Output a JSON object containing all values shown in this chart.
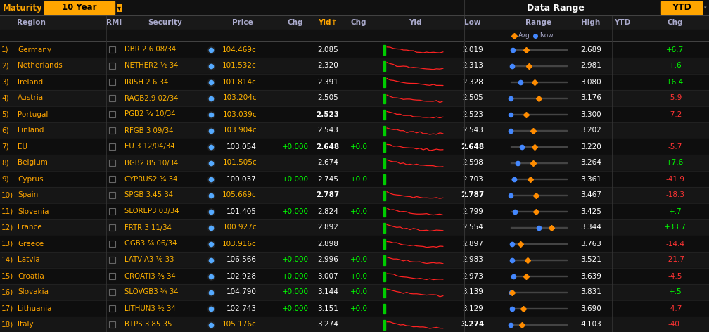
{
  "bg_color": "#0a0a0a",
  "header_bg": "#1a1a1a",
  "orange_highlight": "#FFA500",
  "green_text": "#00FF00",
  "white_text": "#FFFFFF",
  "yellow_text": "#FFB300",
  "orange_text": "#FFA500",
  "gray_text": "#AAAAAA",
  "red_text": "#FF3333",
  "col_header_color": "#AAAACC",
  "title_row": {
    "maturity_label": "Maturity",
    "maturity_value": "10 Year",
    "data_range_label": "Data Range",
    "ytd_label": "YTD"
  },
  "rows": [
    {
      "num": "1)",
      "region": "Germany",
      "security": "DBR 2.6 08/34",
      "price": "104.469c",
      "price_chg": "",
      "yld": "2.085",
      "yld_chg": "",
      "low": "2.019",
      "high": "2.689",
      "ytd": "+6.7",
      "bold_yld": false,
      "bold_low": false,
      "has_chart": true
    },
    {
      "num": "2)",
      "region": "Netherlands",
      "security": "NETHER2 ½ 34",
      "price": "101.532c",
      "price_chg": "",
      "yld": "2.320",
      "yld_chg": "",
      "low": "2.313",
      "high": "2.981",
      "ytd": "+.6",
      "bold_yld": false,
      "bold_low": false,
      "has_chart": true
    },
    {
      "num": "3)",
      "region": "Ireland",
      "security": "IRISH 2.6 34",
      "price": "101.814c",
      "price_chg": "",
      "yld": "2.391",
      "yld_chg": "",
      "low": "2.328",
      "high": "3.080",
      "ytd": "+6.4",
      "bold_yld": false,
      "bold_low": false,
      "has_chart": true
    },
    {
      "num": "4)",
      "region": "Austria",
      "security": "RAGB2.9 02/34",
      "price": "103.204c",
      "price_chg": "",
      "yld": "2.505",
      "yld_chg": "",
      "low": "2.505",
      "high": "3.176",
      "ytd": "-5.9",
      "bold_yld": false,
      "bold_low": false,
      "has_chart": true
    },
    {
      "num": "5)",
      "region": "Portugal",
      "security": "PGB2 ⅞ 10/34",
      "price": "103.039c",
      "price_chg": "",
      "yld": "2.523",
      "yld_chg": "",
      "low": "2.523",
      "high": "3.300",
      "ytd": "-7.2",
      "bold_yld": true,
      "bold_low": false,
      "has_chart": true
    },
    {
      "num": "6)",
      "region": "Finland",
      "security": "RFGB 3 09/34",
      "price": "103.904c",
      "price_chg": "",
      "yld": "2.543",
      "yld_chg": "",
      "low": "2.543",
      "high": "3.202",
      "ytd": "",
      "bold_yld": false,
      "bold_low": false,
      "has_chart": true
    },
    {
      "num": "7)",
      "region": "EU",
      "security": "EU 3 12/04/34",
      "price": "103.054",
      "price_chg": "+0.000",
      "yld": "2.648",
      "yld_chg": "+0.0",
      "low": "2.648",
      "high": "3.220",
      "ytd": "-5.7",
      "bold_yld": true,
      "bold_low": true,
      "has_chart": true
    },
    {
      "num": "8)",
      "region": "Belgium",
      "security": "BGB2.85 10/34",
      "price": "101.505c",
      "price_chg": "",
      "yld": "2.674",
      "yld_chg": "",
      "low": "2.598",
      "high": "3.264",
      "ytd": "+7.6",
      "bold_yld": false,
      "bold_low": false,
      "has_chart": true
    },
    {
      "num": "9)",
      "region": "Cyprus",
      "security": "CYPRUS2 ¾ 34",
      "price": "100.037",
      "price_chg": "+0.000",
      "yld": "2.745",
      "yld_chg": "+0.0",
      "low": "2.703",
      "high": "3.361",
      "ytd": "-41.9",
      "bold_yld": false,
      "bold_low": false,
      "has_chart": false
    },
    {
      "num": "10)",
      "region": "Spain",
      "security": "SPGB 3.45 34",
      "price": "105.669c",
      "price_chg": "",
      "yld": "2.787",
      "yld_chg": "",
      "low": "2.787",
      "high": "3.467",
      "ytd": "-18.3",
      "bold_yld": true,
      "bold_low": true,
      "has_chart": true
    },
    {
      "num": "11)",
      "region": "Slovenia",
      "security": "SLOREP3 03/34",
      "price": "101.405",
      "price_chg": "+0.000",
      "yld": "2.824",
      "yld_chg": "+0.0",
      "low": "2.799",
      "high": "3.425",
      "ytd": "+.7",
      "bold_yld": false,
      "bold_low": false,
      "has_chart": true
    },
    {
      "num": "12)",
      "region": "France",
      "security": "FRTR 3 11/34",
      "price": "100.927c",
      "price_chg": "",
      "yld": "2.892",
      "yld_chg": "",
      "low": "2.554",
      "high": "3.344",
      "ytd": "+33.7",
      "bold_yld": false,
      "bold_low": false,
      "has_chart": true
    },
    {
      "num": "13)",
      "region": "Greece",
      "security": "GGB3 ⅞ 06/34",
      "price": "103.916c",
      "price_chg": "",
      "yld": "2.898",
      "yld_chg": "",
      "low": "2.897",
      "high": "3.763",
      "ytd": "-14.4",
      "bold_yld": false,
      "bold_low": false,
      "has_chart": true
    },
    {
      "num": "14)",
      "region": "Latvia",
      "security": "LATVIA3 ⅞ 33",
      "price": "106.566",
      "price_chg": "+0.000",
      "yld": "2.996",
      "yld_chg": "+0.0",
      "low": "2.983",
      "high": "3.521",
      "ytd": "-21.7",
      "bold_yld": false,
      "bold_low": false,
      "has_chart": true
    },
    {
      "num": "15)",
      "region": "Croatia",
      "security": "CROATI3 ⅞ 34",
      "price": "102.928",
      "price_chg": "+0.000",
      "yld": "3.007",
      "yld_chg": "+0.0",
      "low": "2.973",
      "high": "3.639",
      "ytd": "-4.5",
      "bold_yld": false,
      "bold_low": false,
      "has_chart": true
    },
    {
      "num": "16)",
      "region": "Slovakia",
      "security": "SLOVGB3 ¾ 34",
      "price": "104.790",
      "price_chg": "+0.000",
      "yld": "3.144",
      "yld_chg": "+0.0",
      "low": "3.139",
      "high": "3.831",
      "ytd": "+.5",
      "bold_yld": false,
      "bold_low": false,
      "has_chart": true
    },
    {
      "num": "17)",
      "region": "Lithuania",
      "security": "LITHUN3 ½ 34",
      "price": "102.743",
      "price_chg": "+0.000",
      "yld": "3.151",
      "yld_chg": "+0.0",
      "low": "3.129",
      "high": "3.690",
      "ytd": "-4.7",
      "bold_yld": false,
      "bold_low": false,
      "has_chart": false
    },
    {
      "num": "18)",
      "region": "Italy",
      "security": "BTPS 3.85 35",
      "price": "105.176c",
      "price_chg": "",
      "yld": "3.274",
      "yld_chg": "",
      "low": "3.274",
      "high": "4.103",
      "ytd": "-40.",
      "bold_yld": false,
      "bold_low": true,
      "has_chart": true
    }
  ],
  "range_bar_data": [
    {
      "now": 0.04,
      "avg": 0.28
    },
    {
      "now": 0.02,
      "avg": 0.32
    },
    {
      "now": 0.18,
      "avg": 0.42
    },
    {
      "now": 0.0,
      "avg": 0.5
    },
    {
      "now": 0.0,
      "avg": 0.28
    },
    {
      "now": 0.0,
      "avg": 0.4
    },
    {
      "now": 0.2,
      "avg": 0.42
    },
    {
      "now": 0.12,
      "avg": 0.4
    },
    {
      "now": 0.06,
      "avg": 0.35
    },
    {
      "now": 0.0,
      "avg": 0.45
    },
    {
      "now": 0.08,
      "avg": 0.45
    },
    {
      "now": 0.5,
      "avg": 0.72
    },
    {
      "now": 0.02,
      "avg": 0.18
    },
    {
      "now": 0.02,
      "avg": 0.3
    },
    {
      "now": 0.05,
      "avg": 0.28
    },
    {
      "now": 0.01,
      "avg": 0.02
    },
    {
      "now": 0.03,
      "avg": 0.22
    },
    {
      "now": 0.0,
      "avg": 0.2
    }
  ]
}
